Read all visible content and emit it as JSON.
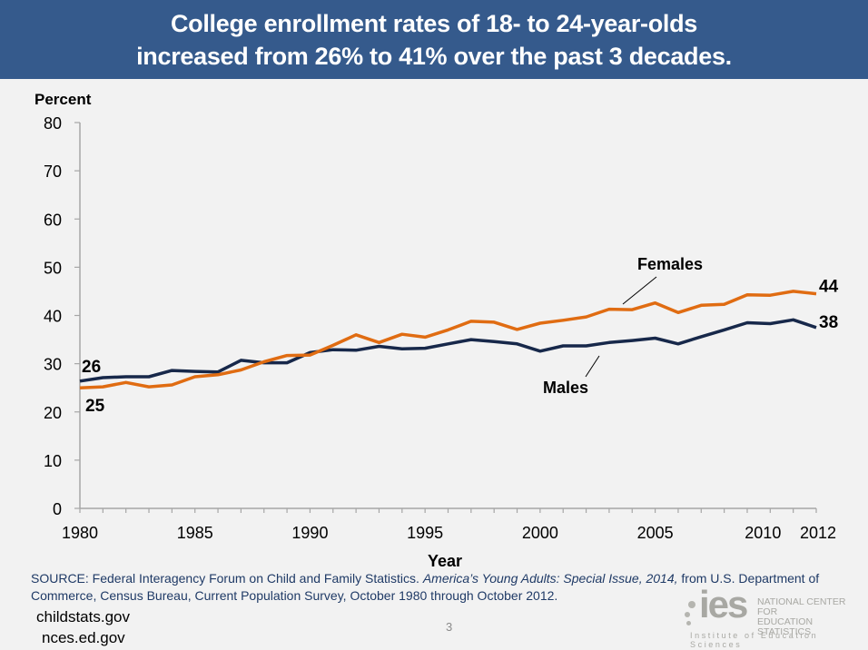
{
  "banner": {
    "line1": "College enrollment rates of 18- to 24-year-olds",
    "line2": "increased from 26% to 41% over the past 3 decades."
  },
  "chart_data": {
    "type": "line",
    "title": "College enrollment rates of 18- to 24-year-olds increased from 26% to 41% over the past 3 decades.",
    "xlabel": "Year",
    "ylabel": "Percent",
    "xlim": [
      1980,
      2012
    ],
    "ylim": [
      0,
      80
    ],
    "yticks": [
      0,
      10,
      20,
      30,
      40,
      50,
      60,
      70,
      80
    ],
    "xtick_labels": [
      1980,
      1985,
      1990,
      1995,
      2000,
      2005,
      2010,
      2012
    ],
    "grid": false,
    "x": [
      1980,
      1981,
      1982,
      1983,
      1984,
      1985,
      1986,
      1987,
      1988,
      1989,
      1990,
      1991,
      1992,
      1993,
      1994,
      1995,
      1996,
      1997,
      1998,
      1999,
      2000,
      2001,
      2002,
      2003,
      2004,
      2005,
      2006,
      2007,
      2008,
      2009,
      2010,
      2011,
      2012
    ],
    "series": [
      {
        "name": "Males",
        "color": "#17284a",
        "values": [
          26.4,
          27.1,
          27.3,
          27.3,
          28.6,
          28.4,
          28.3,
          30.7,
          30.2,
          30.2,
          32.3,
          32.9,
          32.8,
          33.6,
          33.1,
          33.2,
          34.1,
          35.0,
          34.6,
          34.1,
          32.6,
          33.7,
          33.7,
          34.4,
          34.8,
          35.3,
          34.1,
          35.6,
          37.0,
          38.5,
          38.3,
          39.1,
          37.5
        ],
        "start_label": "26",
        "end_label": "38"
      },
      {
        "name": "Females",
        "color": "#e06c12",
        "values": [
          25.0,
          25.2,
          26.1,
          25.2,
          25.6,
          27.3,
          27.7,
          28.7,
          30.4,
          31.7,
          31.8,
          33.8,
          36.0,
          34.4,
          36.1,
          35.5,
          37.0,
          38.8,
          38.6,
          37.1,
          38.4,
          39.0,
          39.7,
          41.3,
          41.2,
          42.6,
          40.6,
          42.1,
          42.3,
          44.3,
          44.2,
          45.0,
          44.5
        ],
        "start_label": "25",
        "end_label": "44"
      }
    ],
    "annotations": [
      "Females",
      "Males"
    ]
  },
  "footer": {
    "source_prefix": "SOURCE: Federal Interagency Forum on Child and Family Statistics. ",
    "source_title": "America’s Young Adults: Special Issue, 2014,",
    "source_suffix": " from U.S. Department of Commerce, Census Bureau, Current Population Survey, October 1980 through October 2012.",
    "url1": "childstats.gov",
    "url2": "nces.ed.gov",
    "page_number": "3"
  },
  "logo": {
    "mark": "ies",
    "line1": "NATIONAL CENTER FOR",
    "line2": "EDUCATION STATISTICS",
    "tagline": "Institute of Education Sciences"
  }
}
